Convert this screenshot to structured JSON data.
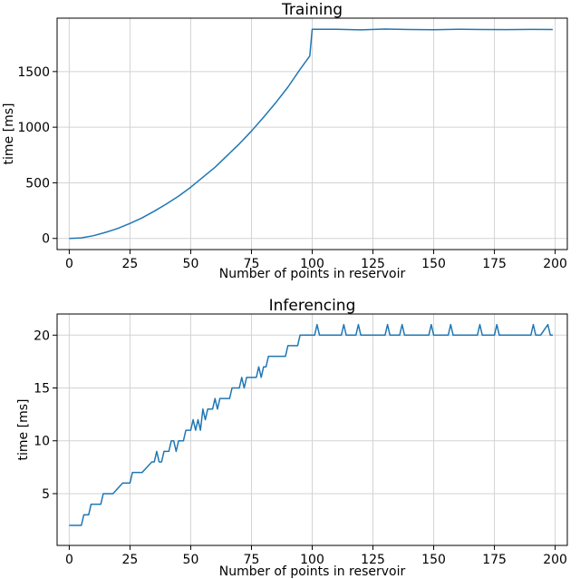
{
  "chart_data": [
    {
      "type": "line",
      "title": "Training",
      "xlabel": "Number of points in reservoir",
      "ylabel": "time [ms]",
      "xlim": [
        -5,
        205
      ],
      "ylim": [
        -100,
        1980
      ],
      "xticks": [
        0,
        25,
        50,
        75,
        100,
        125,
        150,
        175,
        200
      ],
      "yticks": [
        0,
        500,
        1000,
        1500
      ],
      "grid": true,
      "series": [
        {
          "color": "#1f77b4",
          "x": [
            0,
            5,
            10,
            15,
            20,
            25,
            30,
            35,
            40,
            45,
            50,
            55,
            60,
            65,
            70,
            75,
            80,
            85,
            90,
            95,
            99,
            100,
            110,
            120,
            130,
            140,
            150,
            160,
            170,
            180,
            190,
            199
          ],
          "y": [
            0,
            5,
            25,
            55,
            90,
            135,
            185,
            245,
            310,
            380,
            460,
            550,
            640,
            745,
            850,
            965,
            1090,
            1220,
            1360,
            1520,
            1640,
            1880,
            1880,
            1875,
            1882,
            1878,
            1876,
            1880,
            1878,
            1877,
            1879,
            1878
          ]
        }
      ]
    },
    {
      "type": "line",
      "title": "Inferencing",
      "xlabel": "Number of points in reservoir",
      "ylabel": "time [ms]",
      "xlim": [
        -5,
        205
      ],
      "ylim": [
        0.1,
        22
      ],
      "xticks": [
        0,
        25,
        50,
        75,
        100,
        125,
        150,
        175,
        200
      ],
      "yticks": [
        5,
        10,
        15,
        20
      ],
      "grid": true,
      "series": [
        {
          "color": "#1f77b4",
          "x": [
            0,
            5,
            6,
            8,
            9,
            13,
            14,
            17,
            18,
            22,
            23,
            25,
            26,
            29,
            30,
            34,
            35,
            36,
            37,
            38,
            39,
            40,
            41,
            42,
            43,
            44,
            45,
            46,
            47,
            48,
            49,
            50,
            51,
            52,
            53,
            54,
            55,
            56,
            57,
            58,
            59,
            60,
            61,
            62,
            63,
            64,
            65,
            66,
            67,
            68,
            69,
            70,
            71,
            72,
            73,
            74,
            75,
            76,
            77,
            78,
            79,
            80,
            81,
            82,
            83,
            84,
            85,
            86,
            87,
            88,
            89,
            90,
            91,
            92,
            93,
            94,
            95,
            96,
            97,
            98,
            99,
            100,
            101,
            102,
            103,
            104,
            112,
            113,
            114,
            118,
            119,
            120,
            121,
            122,
            130,
            131,
            132,
            136,
            137,
            138,
            139,
            140,
            148,
            149,
            150,
            151,
            152,
            156,
            157,
            158,
            159,
            160,
            168,
            169,
            170,
            171,
            172,
            175,
            176,
            177,
            178,
            179,
            190,
            191,
            192,
            193,
            194,
            197,
            198,
            199
          ],
          "y": [
            2,
            2,
            3,
            3,
            4,
            4,
            5,
            5,
            5,
            6,
            6,
            6,
            7,
            7,
            7,
            8,
            8,
            9,
            8,
            8,
            9,
            9,
            9,
            10,
            10,
            9,
            10,
            10,
            10,
            11,
            11,
            11,
            12,
            11,
            12,
            11,
            13,
            12,
            13,
            13,
            13,
            14,
            13,
            14,
            14,
            14,
            14,
            14,
            15,
            15,
            15,
            15,
            16,
            15,
            16,
            16,
            16,
            16,
            16,
            17,
            16,
            17,
            17,
            18,
            18,
            18,
            18,
            18,
            18,
            18,
            18,
            19,
            19,
            19,
            19,
            19,
            20,
            20,
            20,
            20,
            20,
            20,
            20,
            21,
            20,
            20,
            20,
            21,
            20,
            20,
            21,
            20,
            20,
            20,
            20,
            21,
            20,
            20,
            21,
            20,
            20,
            20,
            20,
            21,
            20,
            20,
            20,
            20,
            21,
            20,
            20,
            20,
            20,
            21,
            20,
            20,
            20,
            20,
            21,
            20,
            20,
            20,
            20,
            21,
            20,
            20,
            20,
            21,
            20,
            20
          ]
        }
      ]
    }
  ]
}
